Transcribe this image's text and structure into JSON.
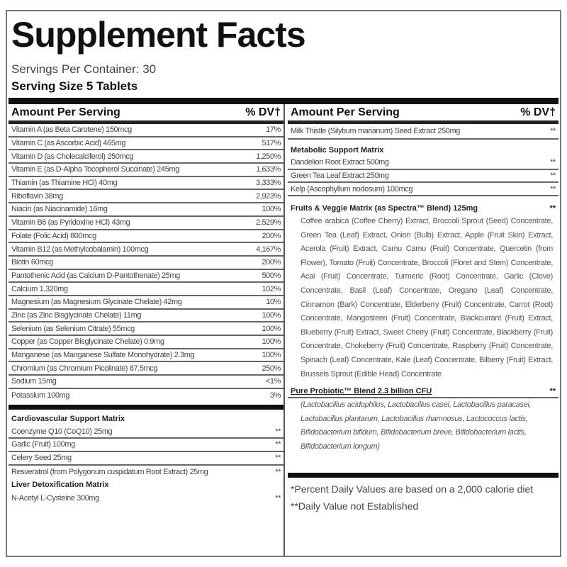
{
  "title": "Supplement Facts",
  "servings_per_container": "Servings Per Container: 30",
  "serving_size": "Serving Size 5 Tablets",
  "header": {
    "amount": "Amount Per Serving",
    "dv": "% DV†"
  },
  "left_rows": [
    [
      "Vitamin A (as Beta Carotene) 150mcg",
      "17%"
    ],
    [
      "Vitamin C (as Ascorbic Acid) 465mg",
      "517%"
    ],
    [
      "Vitamin D (as Cholecalciferol) 250mcg",
      "1,250%"
    ],
    [
      "Vitamin E (as D-Alpha Tocopherol Succinate) 245mg",
      "1,633%"
    ],
    [
      "Thiamin (as Thiamine HCl) 40mg",
      "3,333%"
    ],
    [
      "Riboflavin 38mg",
      "2,923%"
    ],
    [
      "Niacin (as Niacinamide) 16mg",
      "100%"
    ],
    [
      "Vitamin B6 (as Pyridoxine HCl) 43mg",
      "2,529%"
    ],
    [
      "Folate (Folic Acid) 800mcg",
      "200%"
    ],
    [
      "Vitamin B12 (as Methylcobalamin) 100mcg",
      "4,167%"
    ],
    [
      "Biotin 60mcg",
      "200%"
    ],
    [
      "Pantothenic Acid (as Calcium D-Pantothenate) 25mg",
      "500%"
    ],
    [
      "Calcium 1,320mg",
      "102%"
    ],
    [
      "Magnesium (as Magnesium Glycinate Chelate) 42mg",
      "10%"
    ],
    [
      "Zinc (as Zinc Bisglycinate Chelate) 11mg",
      "100%"
    ],
    [
      "Selenium (as Selenium Citrate) 55mcg",
      "100%"
    ],
    [
      "Copper (as Copper Bisglycinate Chelate) 0.9mg",
      "100%"
    ],
    [
      "Manganese (as Manganese Sulfate Monohydrate) 2.3mg",
      "100%"
    ],
    [
      "Chromium (as Chromium Picolinate) 87.5mcg",
      "250%"
    ],
    [
      "Sodium 15mg",
      "<1%"
    ],
    [
      "Potassium 100mg",
      "3%"
    ]
  ],
  "cardio": {
    "title": "Cardiovascular Support Matrix",
    "rows": [
      [
        "Coenzyme Q10 (CoQ10) 25mg",
        "**"
      ],
      [
        "Garlic (Fruit) 100mg",
        "**"
      ],
      [
        "Celery Seed 25mg",
        "**"
      ],
      [
        "Resveratrol (from Polygonum cuspidatum Root Extract) 25mg",
        "**"
      ]
    ]
  },
  "liver": {
    "title": "Liver Detoxification Matrix",
    "rows": [
      [
        "N-Acetyl L-Cysteine 300mg",
        "**"
      ]
    ]
  },
  "right_top": [
    "Milk Thistle (Silybum marianum) Seed Extract 250mg",
    "**"
  ],
  "metabolic": {
    "title": "Metabolic Support Matrix",
    "rows": [
      [
        "Dandelion Root Extract 500mg",
        "**"
      ],
      [
        "Green Tea Leaf Extract 250mg",
        "**"
      ],
      [
        "Kelp (Ascophyllum nodosum) 100mcg",
        "**"
      ]
    ]
  },
  "fruits": {
    "title": "Fruits & Veggie Matrix (as Spectra™ Blend) 125mg",
    "dv": "**",
    "text": "Coffee arabica (Coffee Cherry) Extract, Broccoli Sprout (Seed) Concentrate, Green Tea (Leaf) Extract, Onion (Bulb) Extract, Apple (Fruit Skin) Extract, Acerola (Fruit) Extract, Camu Camu (Fruit) Concentrate, Quercetin (from Flower), Tomato (Fruit) Concentrate, Broccoli (Floret and Stem) Concentrate, Acai (Fruit) Concentrate, Turmeric (Root) Concentrate, Garlic (Clove) Concentrate, Basil (Leaf) Concentrate, Oregano (Leaf) Concentrate, Cinnamon (Bark) Concentrate, Elderberry (Fruit) Concentrate, Carrot (Root) Concentrate, Mangosteen (Fruit) Concentrate, Blackcurrant (Fruit) Extract, Blueberry (Fruit) Extract, Sweet Cherry (Fruit) Concentrate, Blackberry (Fruit) Concentrate, Chokeberry (Fruit) Concentrate, Raspberry (Fruit) Concentrate, Spinach (Leaf) Concentrate, Kale (Leaf) Concentrate, Bilberry (Fruit) Extract, Brussels Sprout (Edible Head) Concentrate"
  },
  "probiotic": {
    "title": "Pure Probiotic™ Blend 2.3 billion CFU",
    "dv": "**",
    "text": "(Lactobacillus acidophilus, Lactobacillus casei, Lactobacillus paracasei, Lactobacillus plantarum, Lactobacillus rhamnosus, Lactococcus lactis, Bifidobacterium bifidum, Bifidobacterium breve, Bifidobacterium lactis, Bifidobacterium longum)"
  },
  "footnotes": [
    "*Percent Daily Values are based on a 2,000 calorie diet",
    "**Daily Value not Established"
  ]
}
